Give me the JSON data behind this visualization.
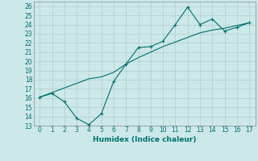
{
  "xlabel": "Humidex (Indice chaleur)",
  "background_color": "#cce8e8",
  "grid_color": "#b0cccc",
  "line_color": "#007070",
  "xlim": [
    -0.5,
    17.5
  ],
  "ylim": [
    13,
    26.5
  ],
  "xticks": [
    0,
    1,
    2,
    3,
    4,
    5,
    6,
    7,
    8,
    9,
    10,
    11,
    12,
    13,
    14,
    15,
    16,
    17
  ],
  "yticks": [
    13,
    14,
    15,
    16,
    17,
    18,
    19,
    20,
    21,
    22,
    23,
    24,
    25,
    26
  ],
  "line1_x": [
    0,
    1,
    2,
    3,
    4,
    5,
    6,
    7,
    8,
    9,
    10,
    11,
    12,
    13,
    14,
    15,
    16,
    17
  ],
  "line1_y": [
    16.1,
    16.5,
    15.6,
    13.8,
    13.1,
    14.3,
    17.8,
    19.7,
    21.5,
    21.6,
    22.2,
    24.0,
    25.9,
    24.0,
    24.6,
    23.3,
    23.7,
    24.2
  ],
  "line2_x": [
    0,
    1,
    2,
    3,
    4,
    5,
    6,
    7,
    8,
    9,
    10,
    11,
    12,
    13,
    14,
    15,
    16,
    17
  ],
  "line2_y": [
    16.1,
    16.6,
    17.1,
    17.6,
    18.1,
    18.3,
    18.8,
    19.7,
    20.4,
    21.0,
    21.6,
    22.1,
    22.6,
    23.1,
    23.4,
    23.6,
    23.9,
    24.2
  ],
  "tick_fontsize": 5.5,
  "xlabel_fontsize": 6.5
}
